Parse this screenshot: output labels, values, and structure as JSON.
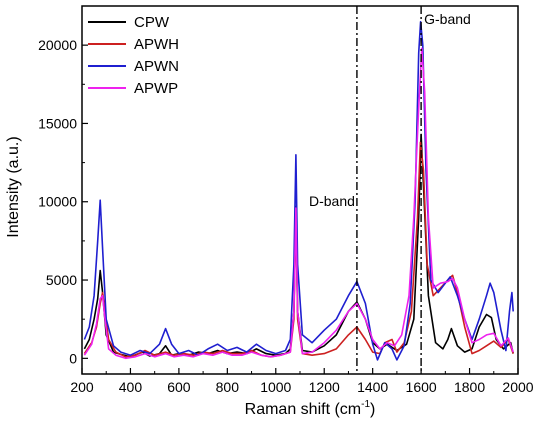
{
  "chart_data": {
    "type": "line",
    "xlabel": "Raman shift (cm",
    "xlabel_sup": "-1",
    "xlabel_end": ")",
    "ylabel": "Intensity (a.u.)",
    "xlim": [
      200,
      2000
    ],
    "ylim": [
      -1000,
      22500
    ],
    "x_ticks": [
      200,
      400,
      600,
      800,
      1000,
      1200,
      1400,
      1600,
      1800,
      2000
    ],
    "y_ticks": [
      0,
      5000,
      10000,
      15000,
      20000
    ],
    "grid": false,
    "legend_position": "top-left",
    "annotations": [
      {
        "label": "D-band",
        "x": 1335
      },
      {
        "label": "G-band",
        "x": 1600
      }
    ],
    "series": [
      {
        "name": "CPW",
        "color": "#000000",
        "points": [
          [
            210,
            600
          ],
          [
            230,
            1200
          ],
          [
            250,
            2500
          ],
          [
            265,
            3800
          ],
          [
            275,
            5600
          ],
          [
            285,
            4200
          ],
          [
            300,
            1500
          ],
          [
            330,
            400
          ],
          [
            360,
            250
          ],
          [
            400,
            100
          ],
          [
            450,
            400
          ],
          [
            480,
            150
          ],
          [
            520,
            300
          ],
          [
            545,
            800
          ],
          [
            570,
            200
          ],
          [
            600,
            300
          ],
          [
            640,
            200
          ],
          [
            680,
            400
          ],
          [
            720,
            300
          ],
          [
            760,
            500
          ],
          [
            800,
            300
          ],
          [
            840,
            400
          ],
          [
            880,
            300
          ],
          [
            920,
            600
          ],
          [
            960,
            300
          ],
          [
            1000,
            200
          ],
          [
            1040,
            300
          ],
          [
            1060,
            600
          ],
          [
            1075,
            3000
          ],
          [
            1083,
            9700
          ],
          [
            1090,
            3000
          ],
          [
            1110,
            500
          ],
          [
            1150,
            400
          ],
          [
            1200,
            800
          ],
          [
            1250,
            1500
          ],
          [
            1300,
            3000
          ],
          [
            1335,
            3600
          ],
          [
            1370,
            2500
          ],
          [
            1400,
            1000
          ],
          [
            1430,
            600
          ],
          [
            1460,
            900
          ],
          [
            1500,
            500
          ],
          [
            1540,
            900
          ],
          [
            1570,
            2500
          ],
          [
            1590,
            9000
          ],
          [
            1600,
            14300
          ],
          [
            1610,
            11000
          ],
          [
            1630,
            4000
          ],
          [
            1660,
            1000
          ],
          [
            1690,
            600
          ],
          [
            1710,
            1200
          ],
          [
            1725,
            1900
          ],
          [
            1750,
            800
          ],
          [
            1780,
            400
          ],
          [
            1810,
            600
          ],
          [
            1840,
            2000
          ],
          [
            1870,
            2800
          ],
          [
            1890,
            2600
          ],
          [
            1910,
            1200
          ],
          [
            1940,
            600
          ],
          [
            1970,
            1000
          ],
          [
            1980,
            300
          ]
        ]
      },
      {
        "name": "APWH",
        "color": "#cc2020",
        "points": [
          [
            210,
            300
          ],
          [
            240,
            1000
          ],
          [
            260,
            2000
          ],
          [
            275,
            3500
          ],
          [
            285,
            4200
          ],
          [
            295,
            3000
          ],
          [
            310,
            1200
          ],
          [
            340,
            400
          ],
          [
            380,
            100
          ],
          [
            420,
            200
          ],
          [
            460,
            500
          ],
          [
            500,
            200
          ],
          [
            545,
            400
          ],
          [
            580,
            200
          ],
          [
            620,
            300
          ],
          [
            660,
            200
          ],
          [
            700,
            400
          ],
          [
            740,
            300
          ],
          [
            780,
            500
          ],
          [
            820,
            300
          ],
          [
            860,
            300
          ],
          [
            900,
            500
          ],
          [
            940,
            200
          ],
          [
            980,
            100
          ],
          [
            1020,
            200
          ],
          [
            1060,
            400
          ],
          [
            1075,
            2500
          ],
          [
            1083,
            9400
          ],
          [
            1090,
            2500
          ],
          [
            1110,
            300
          ],
          [
            1150,
            200
          ],
          [
            1200,
            300
          ],
          [
            1250,
            600
          ],
          [
            1300,
            1500
          ],
          [
            1335,
            2000
          ],
          [
            1370,
            1200
          ],
          [
            1400,
            400
          ],
          [
            1430,
            300
          ],
          [
            1450,
            1000
          ],
          [
            1480,
            1200
          ],
          [
            1500,
            400
          ],
          [
            1530,
            1000
          ],
          [
            1560,
            3000
          ],
          [
            1585,
            9000
          ],
          [
            1597,
            13800
          ],
          [
            1610,
            12000
          ],
          [
            1625,
            6000
          ],
          [
            1650,
            4000
          ],
          [
            1680,
            4500
          ],
          [
            1710,
            5000
          ],
          [
            1730,
            5300
          ],
          [
            1750,
            4200
          ],
          [
            1780,
            2000
          ],
          [
            1810,
            300
          ],
          [
            1840,
            500
          ],
          [
            1870,
            800
          ],
          [
            1900,
            1100
          ],
          [
            1930,
            700
          ],
          [
            1960,
            1200
          ],
          [
            1980,
            300
          ]
        ]
      },
      {
        "name": "APWN",
        "color": "#1f1fd0",
        "points": [
          [
            210,
            1200
          ],
          [
            230,
            2000
          ],
          [
            250,
            4000
          ],
          [
            265,
            7500
          ],
          [
            275,
            10100
          ],
          [
            285,
            7000
          ],
          [
            300,
            2500
          ],
          [
            330,
            800
          ],
          [
            360,
            400
          ],
          [
            400,
            200
          ],
          [
            440,
            500
          ],
          [
            480,
            300
          ],
          [
            520,
            900
          ],
          [
            545,
            1900
          ],
          [
            570,
            900
          ],
          [
            600,
            300
          ],
          [
            640,
            500
          ],
          [
            680,
            200
          ],
          [
            720,
            600
          ],
          [
            760,
            900
          ],
          [
            800,
            500
          ],
          [
            840,
            700
          ],
          [
            880,
            400
          ],
          [
            920,
            900
          ],
          [
            960,
            500
          ],
          [
            1000,
            300
          ],
          [
            1040,
            500
          ],
          [
            1060,
            1200
          ],
          [
            1075,
            6000
          ],
          [
            1083,
            13000
          ],
          [
            1090,
            6000
          ],
          [
            1110,
            1500
          ],
          [
            1150,
            1000
          ],
          [
            1200,
            1800
          ],
          [
            1250,
            2500
          ],
          [
            1300,
            4000
          ],
          [
            1335,
            4900
          ],
          [
            1370,
            3500
          ],
          [
            1400,
            900
          ],
          [
            1420,
            -100
          ],
          [
            1450,
            1000
          ],
          [
            1480,
            600
          ],
          [
            1500,
            -100
          ],
          [
            1530,
            800
          ],
          [
            1555,
            3500
          ],
          [
            1575,
            10000
          ],
          [
            1590,
            19500
          ],
          [
            1598,
            21500
          ],
          [
            1607,
            20000
          ],
          [
            1620,
            12000
          ],
          [
            1640,
            5000
          ],
          [
            1670,
            4200
          ],
          [
            1700,
            4800
          ],
          [
            1720,
            5200
          ],
          [
            1750,
            4000
          ],
          [
            1780,
            2500
          ],
          [
            1810,
            1200
          ],
          [
            1840,
            2500
          ],
          [
            1870,
            4000
          ],
          [
            1885,
            4800
          ],
          [
            1900,
            4200
          ],
          [
            1930,
            1800
          ],
          [
            1950,
            500
          ],
          [
            1965,
            3000
          ],
          [
            1975,
            4200
          ],
          [
            1980,
            3000
          ]
        ]
      },
      {
        "name": "APWP",
        "color": "#ee22ee",
        "points": [
          [
            210,
            200
          ],
          [
            240,
            900
          ],
          [
            260,
            2200
          ],
          [
            275,
            3800
          ],
          [
            285,
            4000
          ],
          [
            295,
            2500
          ],
          [
            310,
            600
          ],
          [
            340,
            200
          ],
          [
            380,
            0
          ],
          [
            420,
            100
          ],
          [
            460,
            300
          ],
          [
            500,
            100
          ],
          [
            545,
            300
          ],
          [
            580,
            100
          ],
          [
            620,
            200
          ],
          [
            660,
            100
          ],
          [
            700,
            300
          ],
          [
            740,
            200
          ],
          [
            780,
            400
          ],
          [
            820,
            200
          ],
          [
            860,
            200
          ],
          [
            900,
            400
          ],
          [
            940,
            200
          ],
          [
            980,
            100
          ],
          [
            1020,
            200
          ],
          [
            1060,
            400
          ],
          [
            1075,
            3000
          ],
          [
            1083,
            9600
          ],
          [
            1090,
            3000
          ],
          [
            1110,
            300
          ],
          [
            1150,
            400
          ],
          [
            1200,
            1000
          ],
          [
            1250,
            1800
          ],
          [
            1300,
            3000
          ],
          [
            1335,
            3500
          ],
          [
            1370,
            2500
          ],
          [
            1400,
            1200
          ],
          [
            1430,
            600
          ],
          [
            1460,
            1000
          ],
          [
            1490,
            800
          ],
          [
            1520,
            1500
          ],
          [
            1550,
            4000
          ],
          [
            1570,
            9000
          ],
          [
            1590,
            16000
          ],
          [
            1603,
            19800
          ],
          [
            1615,
            17000
          ],
          [
            1630,
            9000
          ],
          [
            1650,
            4500
          ],
          [
            1680,
            4800
          ],
          [
            1710,
            4900
          ],
          [
            1730,
            5100
          ],
          [
            1750,
            4500
          ],
          [
            1780,
            2500
          ],
          [
            1810,
            1000
          ],
          [
            1840,
            1200
          ],
          [
            1870,
            1500
          ],
          [
            1900,
            1600
          ],
          [
            1930,
            800
          ],
          [
            1960,
            1300
          ],
          [
            1980,
            400
          ]
        ]
      }
    ]
  }
}
